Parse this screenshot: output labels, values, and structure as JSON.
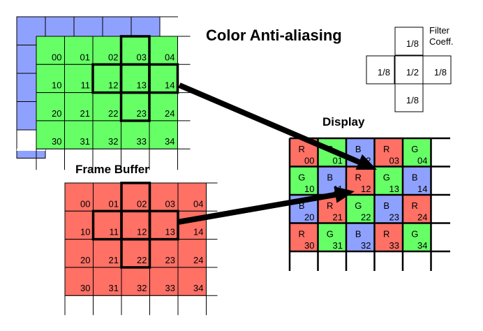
{
  "title": "Color Anti-aliasing",
  "frame_buffer_label": "Frame Buffer",
  "display_label": "Display",
  "filter": {
    "label_line1": "Filter",
    "label_line2": "Coeff.",
    "top": "1/8",
    "left": "1/8",
    "center": "1/2",
    "right": "1/8",
    "bottom": "1/8"
  },
  "colors": {
    "red": "#ff7065",
    "green": "#66ff66",
    "blue": "#8fa1ff"
  },
  "cell_ids": [
    [
      "00",
      "01",
      "02",
      "03",
      "04"
    ],
    [
      "10",
      "11",
      "12",
      "13",
      "14"
    ],
    [
      "20",
      "21",
      "22",
      "23",
      "24"
    ],
    [
      "30",
      "31",
      "32",
      "33",
      "34"
    ]
  ],
  "display_channels": [
    [
      "R",
      "G",
      "B",
      "R",
      "G"
    ],
    [
      "G",
      "B",
      "R",
      "G",
      "B"
    ],
    [
      "B",
      "R",
      "G",
      "B",
      "R"
    ],
    [
      "R",
      "G",
      "B",
      "R",
      "G"
    ]
  ],
  "green_highlight_center": "13",
  "red_highlight_center": "12"
}
